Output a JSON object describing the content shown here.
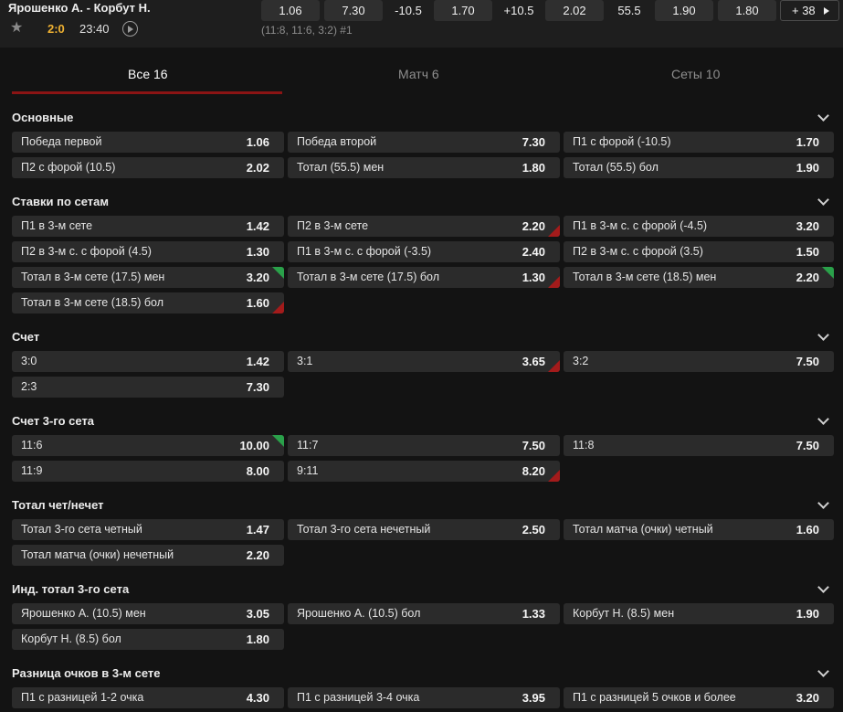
{
  "header": {
    "match_title": "Ярошенко А. - Корбут Н.",
    "score": "2:0",
    "time": "23:40",
    "set_scores": "(11:8, 11:6, 3:2) #1",
    "quick": [
      "1.06",
      "7.30",
      "-10.5",
      "1.70",
      "+10.5",
      "2.02",
      "55.5",
      "1.90",
      "1.80"
    ],
    "more_label": "+ 38",
    "colors": {
      "score": "#f0b232",
      "accent": "#8b1414"
    }
  },
  "tabs": [
    {
      "label": "Все 16"
    },
    {
      "label": "Матч 6"
    },
    {
      "label": "Сеты 10"
    }
  ],
  "sections": [
    {
      "title": "Основные",
      "rows": [
        [
          {
            "label": "Победа первой",
            "value": "1.06"
          },
          {
            "label": "Победа второй",
            "value": "7.30"
          },
          {
            "label": "П1 с форой (-10.5)",
            "value": "1.70"
          }
        ],
        [
          {
            "label": "П2 с форой (10.5)",
            "value": "2.02"
          },
          {
            "label": "Тотал (55.5) мен",
            "value": "1.80"
          },
          {
            "label": "Тотал (55.5) бол",
            "value": "1.90"
          }
        ]
      ]
    },
    {
      "title": "Ставки по сетам",
      "rows": [
        [
          {
            "label": "П1 в 3-м сете",
            "value": "1.42"
          },
          {
            "label": "П2 в 3-м сете",
            "value": "2.20",
            "trend": "down"
          },
          {
            "label": "П1 в 3-м с. с форой (-4.5)",
            "value": "3.20"
          }
        ],
        [
          {
            "label": "П2 в 3-м с. с форой (4.5)",
            "value": "1.30"
          },
          {
            "label": "П1 в 3-м с. с форой (-3.5)",
            "value": "2.40"
          },
          {
            "label": "П2 в 3-м с. с форой (3.5)",
            "value": "1.50"
          }
        ],
        [
          {
            "label": "Тотал в 3-м сете (17.5) мен",
            "value": "3.20",
            "trend": "up"
          },
          {
            "label": "Тотал в 3-м сете (17.5) бол",
            "value": "1.30",
            "trend": "down"
          },
          {
            "label": "Тотал в 3-м сете (18.5) мен",
            "value": "2.20",
            "trend": "up"
          }
        ],
        [
          {
            "label": "Тотал в 3-м сете (18.5) бол",
            "value": "1.60",
            "trend": "down"
          }
        ]
      ]
    },
    {
      "title": "Счет",
      "rows": [
        [
          {
            "label": "3:0",
            "value": "1.42"
          },
          {
            "label": "3:1",
            "value": "3.65",
            "trend": "down"
          },
          {
            "label": "3:2",
            "value": "7.50"
          }
        ],
        [
          {
            "label": "2:3",
            "value": "7.30"
          }
        ]
      ]
    },
    {
      "title": "Счет 3-го сета",
      "rows": [
        [
          {
            "label": "11:6",
            "value": "10.00",
            "trend": "up"
          },
          {
            "label": "11:7",
            "value": "7.50"
          },
          {
            "label": "11:8",
            "value": "7.50"
          }
        ],
        [
          {
            "label": "11:9",
            "value": "8.00"
          },
          {
            "label": "9:11",
            "value": "8.20",
            "trend": "down"
          }
        ]
      ]
    },
    {
      "title": "Тотал чет/нечет",
      "rows": [
        [
          {
            "label": "Тотал 3-го сета четный",
            "value": "1.47"
          },
          {
            "label": "Тотал 3-го сета нечетный",
            "value": "2.50"
          },
          {
            "label": "Тотал матча (очки) четный",
            "value": "1.60"
          }
        ],
        [
          {
            "label": "Тотал матча (очки) нечетный",
            "value": "2.20"
          }
        ]
      ]
    },
    {
      "title": "Инд. тотал 3-го сета",
      "rows": [
        [
          {
            "label": "Ярошенко А. (10.5) мен",
            "value": "3.05"
          },
          {
            "label": "Ярошенко А. (10.5) бол",
            "value": "1.33"
          },
          {
            "label": "Корбут Н. (8.5) мен",
            "value": "1.90"
          }
        ],
        [
          {
            "label": "Корбут Н. (8.5) бол",
            "value": "1.80"
          }
        ]
      ]
    },
    {
      "title": "Разница очков в 3-м сете",
      "rows": [
        [
          {
            "label": "П1 с разницей 1-2 очка",
            "value": "4.30"
          },
          {
            "label": "П1 с разницей 3-4 очка",
            "value": "3.95"
          },
          {
            "label": "П1 с разницей 5 очков и более",
            "value": "3.20"
          }
        ]
      ]
    }
  ]
}
